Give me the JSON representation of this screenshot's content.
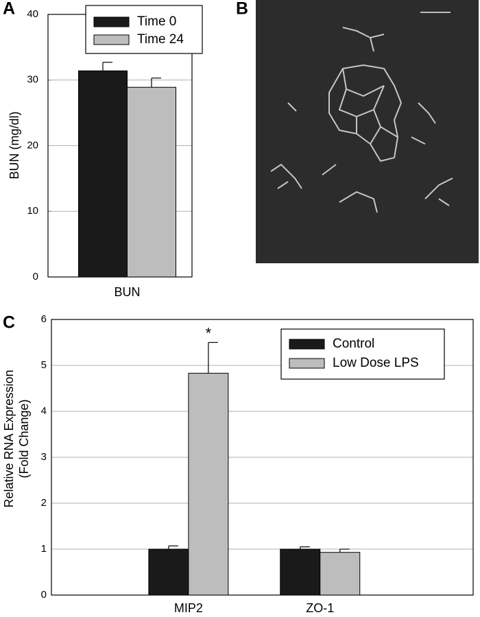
{
  "chart_data": [
    {
      "type": "bar",
      "panel_label": "A",
      "ylabel": "BUN (mg/dl)",
      "categories": [
        "BUN"
      ],
      "series": [
        {
          "name": "Time 0",
          "color": "#1a1a1a",
          "values": [
            31.4
          ],
          "errors": [
            1.3
          ]
        },
        {
          "name": "Time 24",
          "color": "#bdbdbd",
          "values": [
            28.9
          ],
          "errors": [
            1.4
          ]
        }
      ],
      "ylim": [
        0,
        40
      ],
      "yticks": [
        0,
        10,
        20,
        30,
        40
      ],
      "grid": true,
      "legend": "upper right"
    },
    {
      "type": "bar",
      "panel_label": "C",
      "ylabel": [
        "Relative RNA Expression",
        "(Fold Change)"
      ],
      "categories": [
        "MIP2",
        "ZO-1"
      ],
      "series": [
        {
          "name": "Control",
          "color": "#1a1a1a",
          "values": [
            1.0,
            1.0
          ],
          "errors": [
            0.07,
            0.05
          ]
        },
        {
          "name": "Low Dose LPS",
          "color": "#bdbdbd",
          "values": [
            4.83,
            0.93
          ],
          "errors": [
            0.67,
            0.07
          ]
        }
      ],
      "annotation": "*",
      "ylim": [
        0,
        6
      ],
      "yticks": [
        0,
        1,
        2,
        3,
        4,
        5,
        6
      ],
      "grid": true,
      "legend": "upper right"
    }
  ],
  "panel_b": {
    "label": "B"
  }
}
